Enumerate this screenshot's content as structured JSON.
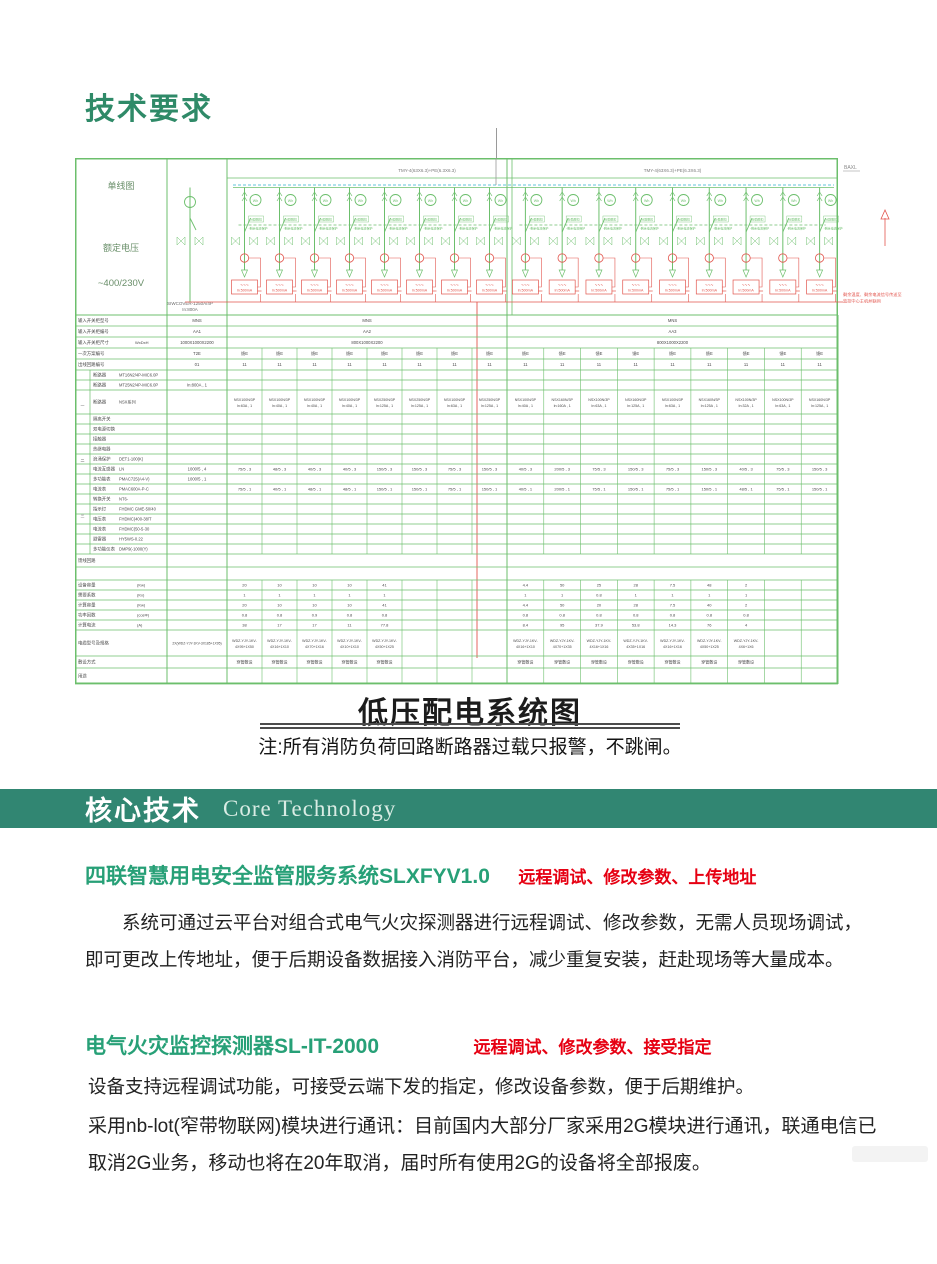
{
  "header": {
    "title": "技术要求",
    "color": "#2f8a68"
  },
  "caption": {
    "title": "低压配电系统图",
    "note": "注:所有消防负荷回路断路器过载只报警，不跳闸。"
  },
  "banner": {
    "title_cn": "核心技术",
    "title_en": "Core Technology",
    "bg": "#318672"
  },
  "sections": [
    {
      "heading": "四联智慧用电安全监管服务系统SLXFYV1.0",
      "tag": "远程调试、修改参数、上传地址",
      "body": "系统可通过云平台对组合式电气火灾探测器进行远程调试、修改参数，无需人员现场调试，即可更改上传地址，便于后期设备数据接入消防平台，减少重复安装，赶赴现场等大量成本。"
    },
    {
      "heading": "电气火灾监控探测器SL-IT-2000",
      "tag": "远程调试、修改参数、接受指定",
      "body": "设备支持远程调试功能，可接受云端下发的指定，修改设备参数，便于后期维护。",
      "body2": "采用nb-lot(窄带物联网)模块进行通讯：目前国内大部分厂家采用2G模块进行通讯，联通电信已取消2G业务，移动也将在20年取消，届时所有使用2G的设备将全部报废。"
    }
  ],
  "colors": {
    "heading_green": "#2f8a68",
    "section_green": "#27a077",
    "tag_red": "#e60012",
    "diagram_green": "#6cbf6c",
    "diagram_red": "#e2554d",
    "bus_cyan": "#7fd0e0",
    "diagram_text": "#4a4a4a",
    "info_text": "#6a8f6a"
  },
  "diagram": {
    "info_column": [
      "单线图",
      "额定电压",
      "~400/230V"
    ],
    "incomer_label": "SIWCOVER-1250A/4P",
    "incomer_sub": "In:800A",
    "bus_label_left": "TMY-4(63X6.3)+PE(6.3X6.3)",
    "bus_label_right": "TMY-4(63X6.3)+PE(6.3X6.3)",
    "corner_label": "BAXL",
    "meter_text": "Wh",
    "feeder_tag1": "分励脱扣",
    "feeder_tag2": "-剩余电流保护",
    "rcd_label": "In:500mA",
    "side_note": [
      "剩余温度、剩余电流信号传送至",
      "监控中心主机并联网"
    ],
    "left_feeders": 8,
    "right_feeders": 9
  },
  "table": {
    "rows": [
      {
        "type": "m3",
        "h": 11,
        "label": "输入开关柜型号",
        "inc": "MNS",
        "lg": "MNS",
        "rg": "MNS"
      },
      {
        "type": "m3",
        "h": 11,
        "label": "输入开关柜编号",
        "inc": "AA1",
        "lg": "AA2",
        "rg": "AA3"
      },
      {
        "type": "m3",
        "h": 11,
        "label": "输入开关柜尺寸",
        "unit": "WxDxH",
        "inc": "1000X1000X2200",
        "lg": "800X1000X2200",
        "rg": "800X1000X2200"
      },
      {
        "type": "pc",
        "h": 11,
        "label": "一次方案编号",
        "inc": "T2E",
        "fill": "馈E"
      },
      {
        "type": "pc",
        "h": 11,
        "label": "出线回路编号",
        "inc": "01",
        "fill": "11"
      },
      {
        "type": "eq",
        "h": 10,
        "label": "断路器",
        "model": "MT16N2/4P-MIC6.0P"
      },
      {
        "type": "eq",
        "h": 10,
        "label": "断路器",
        "model": "MT25N2/4P-MIC6.0P",
        "inc": "In:800A , 1"
      },
      {
        "type": "eq",
        "h": 24,
        "label": "断路器",
        "model": "NSX系列",
        "left2": [
          [
            "NSX100N/3P",
            "In:63A , 1"
          ],
          [
            "NSX100N/3P",
            "In:40A , 1"
          ],
          [
            "NSX100N/3P",
            "In:40A , 1"
          ],
          [
            "NSX100N/3P",
            "In:40A , 1"
          ],
          [
            "NSX250N/3P",
            "In:125A , 1"
          ],
          [
            "NSX250N/3P",
            "In:125A , 1"
          ],
          [
            "NSX100N/3P",
            "In:63A , 1"
          ],
          [
            "NSX250N/3P",
            "In:125A , 1"
          ]
        ],
        "right2": [
          [
            "NSX100N/3P",
            "In:40A , 1"
          ],
          [
            "NSX160N/3P",
            "In:160A , 1"
          ],
          [
            "NSX100N/3P",
            "In:63A , 1"
          ],
          [
            "NSX160N/3P",
            "In:125A , 1"
          ],
          [
            "NSX100N/3P",
            "In:63A , 1"
          ],
          [
            "NSX160N/3P",
            "In:125A , 1"
          ],
          [
            "NSX100N/3P",
            "In:32A , 1"
          ],
          [
            "NSX100N/3P",
            "In:63A , 1"
          ],
          [
            "NSX160N/3P",
            "In:125A , 1"
          ]
        ]
      },
      {
        "type": "eq",
        "h": 10,
        "label": "隔离开关"
      },
      {
        "type": "eq",
        "h": 10,
        "label": "双电源切换"
      },
      {
        "type": "eq",
        "h": 10,
        "label": "接触器"
      },
      {
        "type": "eq",
        "h": 10,
        "label": "热继电器"
      },
      {
        "type": "eq",
        "h": 10,
        "label": "浪涌保护",
        "model": "DET1-100(K)"
      },
      {
        "type": "eq",
        "h": 10,
        "label": "电流互感器",
        "model": "LN",
        "inc": "1000/5 , 4",
        "left": [
          "75/5 , 3",
          "48/5 , 3",
          "40/5 , 3",
          "40/5 , 3",
          "150/5 , 3",
          "150/5 , 3",
          "75/5 , 3",
          "150/5 , 3"
        ],
        "right": [
          "40/5 , 3",
          "200/5 , 3",
          "75/5 , 3",
          "150/5 , 3",
          "75/5 , 3",
          "150/5 , 3",
          "40/5 , 3",
          "75/5 , 3",
          "150/5 , 3"
        ]
      },
      {
        "type": "eq",
        "h": 10,
        "label": "多功能表",
        "model": "PMAC725(A4-V)",
        "inc": "1000/5 , 1"
      },
      {
        "type": "eq",
        "h": 10,
        "label": "电流表",
        "model": "PMAC600A-P-C",
        "left": [
          "75/5 , 1",
          "40/5 , 1",
          "48/5 , 1",
          "48/5 , 1",
          "150/5 , 1",
          "150/5 , 1",
          "75/5 , 1",
          "150/5 , 1"
        ],
        "right": [
          "40/5 , 1",
          "200/5 , 1",
          "75/5 , 1",
          "150/5 , 1",
          "75/5 , 1",
          "150/5 , 1",
          "48/5 , 1",
          "75/5 , 1",
          "150/5 , 1"
        ]
      },
      {
        "type": "eq",
        "h": 10,
        "label": "转换开关",
        "model": "NT6-"
      },
      {
        "type": "eq",
        "h": 10,
        "label": "指示灯",
        "model": "FHDMC GME-50/40"
      },
      {
        "type": "eq",
        "h": 10,
        "label": "电压表",
        "model": "FHDMC(400-38/T"
      },
      {
        "type": "eq",
        "h": 10,
        "label": "电流表",
        "model": "FHDMC(50-5-30"
      },
      {
        "type": "eq",
        "h": 10,
        "label": "避雷器",
        "model": "HY5WS-0.22"
      },
      {
        "type": "eq",
        "h": 10,
        "label": "多功能仪表",
        "model": "DMP9(-1000(Y)"
      },
      {
        "type": "sp",
        "h": 13,
        "label": "馈线回路"
      },
      {
        "type": "sp",
        "h": 13,
        "label": ""
      },
      {
        "type": "calc",
        "h": 10,
        "label": "设备容量",
        "unit": "(Kw)",
        "left": [
          "20",
          "10",
          "10",
          "10",
          "41",
          "",
          "",
          ""
        ],
        "right": [
          "4.4",
          "50",
          "25",
          "28",
          "7.5",
          "48",
          "2",
          "",
          ""
        ]
      },
      {
        "type": "calc",
        "h": 10,
        "label": "需要系数",
        "unit": "(Kx)",
        "left": [
          "1",
          "1",
          "1",
          "1",
          "1",
          "",
          "",
          ""
        ],
        "right": [
          "1",
          "1",
          "0.8",
          "1",
          "1",
          "1",
          "1",
          "",
          ""
        ]
      },
      {
        "type": "calc",
        "h": 10,
        "label": "计算容量",
        "unit": "(Kw)",
        "left": [
          "20",
          "10",
          "10",
          "10",
          "41",
          "",
          "",
          ""
        ],
        "right": [
          "4.4",
          "50",
          "20",
          "28",
          "7.5",
          "40",
          "2",
          "",
          ""
        ]
      },
      {
        "type": "calc",
        "h": 10,
        "label": "功率因数",
        "unit": "(cosΦ)",
        "left": [
          "0.8",
          "0.8",
          "0.9",
          "0.8",
          "0.8",
          "",
          "",
          ""
        ],
        "right": [
          "0.8",
          "0.8",
          "0.8",
          "0.8",
          "0.8",
          "0.8",
          "0.8",
          "",
          ""
        ]
      },
      {
        "type": "calc",
        "h": 10,
        "label": "计算电流",
        "unit": "(A)",
        "left": [
          "38",
          "17",
          "17",
          "11",
          "77.8",
          "",
          "",
          ""
        ],
        "right": [
          "8.4",
          "95",
          "37.9",
          "53.8",
          "14.3",
          "76",
          "4",
          "",
          ""
        ]
      },
      {
        "type": "cable",
        "h": 26,
        "label": "电缆型号及规格",
        "model": "2X(WDZ-YJY-1KV-3X185+1X95)",
        "left2": [
          [
            "WDZ-YJY-1KV-",
            "4X95+1X50"
          ],
          [
            "WDZ-YJY-1KV-",
            "4X16+1X10"
          ],
          [
            "WDZ-YJY-1KV-",
            "4X70+1X16"
          ],
          [
            "WDZ-YJY-1KV-",
            "4X10+1X10"
          ],
          [
            "WDZ-YJY-1KV-",
            "4X50+1X25"
          ],
          [
            "",
            ""
          ],
          [
            "",
            ""
          ],
          [
            "",
            ""
          ]
        ],
        "right2": [
          [
            "WDZ-YJY-1KV-",
            "4X16+1X10"
          ],
          [
            "WDZ-YJY-1KV-",
            "4X70+1X35"
          ],
          [
            "WDZ-YJY-1KV-",
            "4X16+1X16"
          ],
          [
            "WDZ-YJY-1KV-",
            "4X35+1X16"
          ],
          [
            "WDZ-YJY-1KV-",
            "4X16+1X16"
          ],
          [
            "WDZ-YJY-1KV-",
            "4X50+1X25"
          ],
          [
            "WDZ-YJY-1KV-",
            "4X6+1X6"
          ],
          [
            "",
            ""
          ],
          [
            "",
            ""
          ]
        ]
      },
      {
        "type": "calc",
        "h": 12,
        "label": "敷设方式",
        "unit": "",
        "left": [
          "穿管敷设",
          "穿管敷设",
          "穿管敷设",
          "穿管敷设",
          "穿管敷设",
          "",
          "",
          ""
        ],
        "right": [
          "穿管敷设",
          "穿管敷设",
          "穿管敷设",
          "穿管敷设",
          "穿管敷设",
          "穿管敷设",
          "穿管敷设",
          "",
          ""
        ]
      },
      {
        "type": "calc",
        "h": 16,
        "label": "用途",
        "unit": "",
        "left": [
          "",
          "",
          "",
          "",
          "",
          "",
          "",
          ""
        ],
        "right": [
          "",
          "",
          "",
          "",
          "",
          "",
          "",
          "",
          ""
        ]
      }
    ]
  }
}
